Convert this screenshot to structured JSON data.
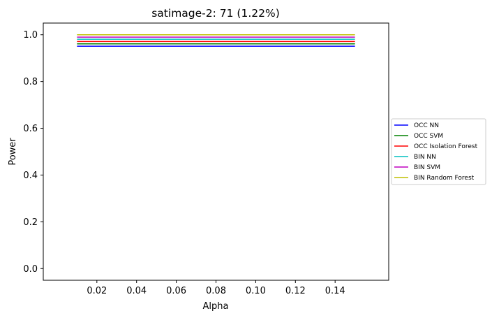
{
  "chart_data": {
    "type": "line",
    "title": "satimage-2: 71 (1.22%)",
    "xlabel": "Alpha",
    "ylabel": "Power",
    "xlim": [
      -0.007,
      0.167
    ],
    "ylim": [
      -0.05,
      1.05
    ],
    "xticks": [
      0.02,
      0.04,
      0.06,
      0.08,
      0.1,
      0.12,
      0.14
    ],
    "xtick_labels": [
      "0.02",
      "0.04",
      "0.06",
      "0.08",
      "0.10",
      "0.12",
      "0.14"
    ],
    "yticks": [
      0.0,
      0.2,
      0.4,
      0.6,
      0.8,
      1.0
    ],
    "ytick_labels": [
      "0.0",
      "0.2",
      "0.4",
      "0.6",
      "0.8",
      "1.0"
    ],
    "grid": false,
    "legend_position": "outside-right",
    "x": [
      0.01,
      0.15
    ],
    "series": [
      {
        "name": "OCC NN",
        "color": "#0000ff",
        "values": [
          0.951,
          0.951
        ]
      },
      {
        "name": "OCC SVM",
        "color": "#008000",
        "values": [
          0.961,
          0.961
        ]
      },
      {
        "name": "OCC Isolation Forest",
        "color": "#ff0000",
        "values": [
          0.971,
          0.971
        ]
      },
      {
        "name": "BIN NN",
        "color": "#00bfbf",
        "values": [
          0.981,
          0.981
        ]
      },
      {
        "name": "BIN SVM",
        "color": "#bf00bf",
        "values": [
          0.99,
          0.99
        ]
      },
      {
        "name": "BIN Random Forest",
        "color": "#bfbf00",
        "values": [
          1.0,
          1.0
        ]
      }
    ]
  }
}
